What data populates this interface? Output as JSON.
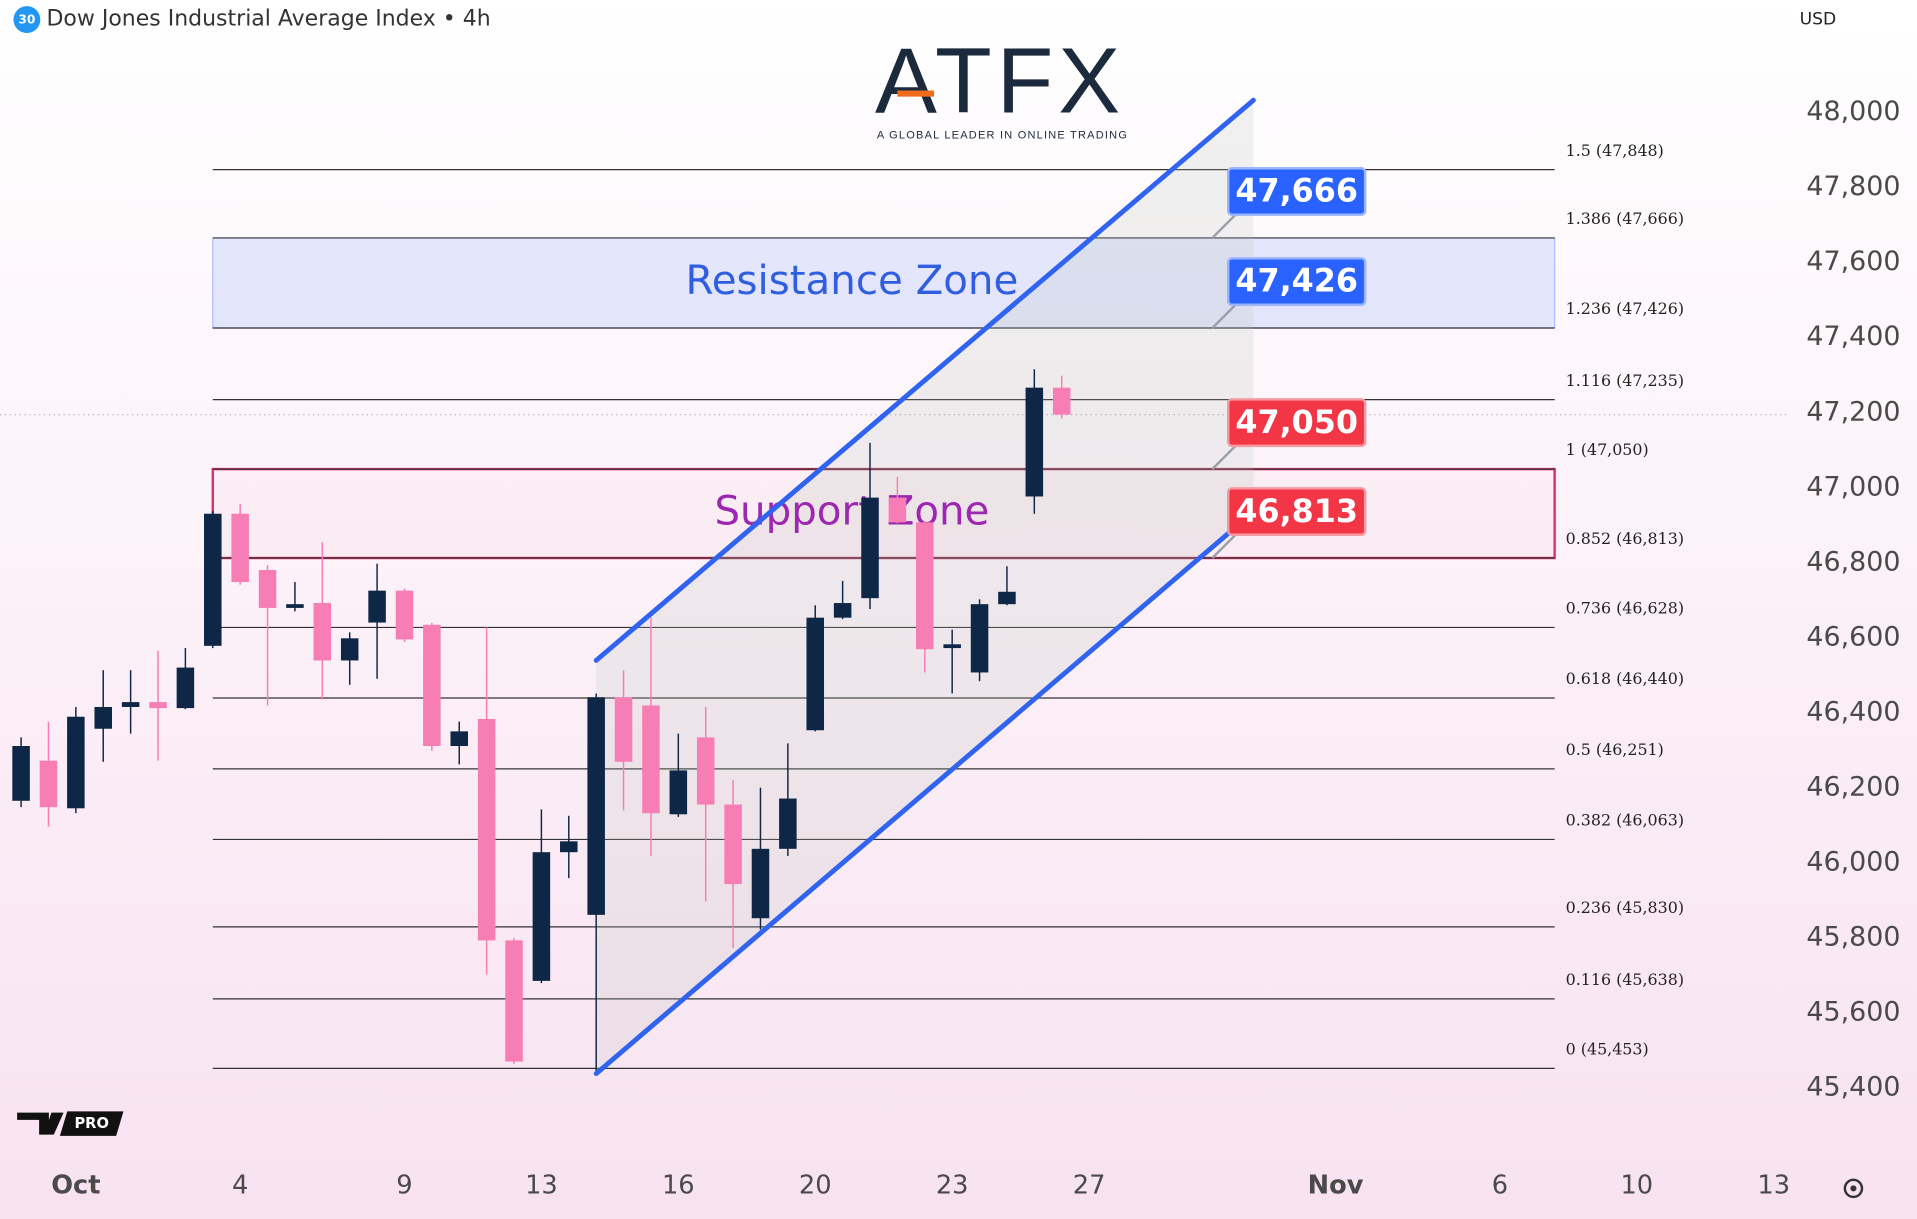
{
  "header": {
    "badge": "30",
    "title": "Dow Jones Industrial Average Index • 4h",
    "currency": "USD"
  },
  "logo": {
    "name": "ATFX",
    "tagline": "A GLOBAL LEADER IN ONLINE TRADING"
  },
  "watermark": "PRO",
  "chart_data": {
    "type": "candlestick",
    "bull_color": "#0f2747",
    "bear_color": "#f77db5",
    "grid": false,
    "x": [
      -2,
      -1,
      0,
      1,
      2,
      3,
      4,
      5,
      6,
      7,
      8,
      9,
      10,
      11,
      12,
      13,
      14,
      15,
      16,
      17,
      18,
      19,
      20,
      21,
      22,
      23,
      24,
      25,
      26,
      27,
      28,
      29,
      30,
      31,
      32,
      33,
      34,
      35,
      36
    ],
    "open": [
      46166,
      46273,
      46146,
      46358,
      46416,
      46429,
      46413,
      46579,
      46931,
      46781,
      46680,
      46693,
      46540,
      46641,
      46726,
      46635,
      46312,
      46384,
      45794,
      45686,
      46029,
      45862,
      46442,
      46420,
      46130,
      46335,
      46156,
      45853,
      46038,
      46354,
      46654,
      46706,
      46974,
      46908,
      46573,
      46508,
      46690,
      46977,
      47267
    ],
    "high": [
      46335,
      46377,
      46416,
      46514,
      46514,
      46566,
      46573,
      46938,
      46957,
      46794,
      46749,
      46856,
      46615,
      46798,
      46732,
      46640,
      46377,
      46628,
      45800,
      46143,
      46126,
      46452,
      46514,
      46654,
      46345,
      46416,
      46221,
      46201,
      46319,
      46687,
      46752,
      47120,
      47029,
      46910,
      46622,
      46703,
      46791,
      47316,
      47299
    ],
    "low": [
      46149,
      46097,
      46133,
      46270,
      46345,
      46273,
      46410,
      46573,
      46742,
      46420,
      46671,
      46436,
      46475,
      46491,
      46589,
      46299,
      46263,
      45703,
      45465,
      45680,
      45960,
      45442,
      46140,
      46019,
      46123,
      45898,
      45774,
      45823,
      46019,
      46351,
      46650,
      46677,
      46905,
      46508,
      46452,
      46485,
      46687,
      46931,
      47185
    ],
    "close": [
      46312,
      46149,
      46390,
      46416,
      46429,
      46413,
      46521,
      46931,
      46749,
      46680,
      46690,
      46540,
      46599,
      46726,
      46596,
      46312,
      46351,
      45794,
      45471,
      46029,
      46058,
      46442,
      46270,
      46133,
      46247,
      46156,
      45944,
      46038,
      46172,
      46654,
      46693,
      46974,
      46908,
      46570,
      46583,
      46690,
      46723,
      47267,
      47195
    ],
    "xlim": [
      -2.77,
      62.5
    ],
    "xticks": [
      {
        "value": 0,
        "label": "Oct"
      },
      {
        "value": 6,
        "label": "4"
      },
      {
        "value": 12,
        "label": "9"
      },
      {
        "value": 17,
        "label": "13"
      },
      {
        "value": 22,
        "label": "16"
      },
      {
        "value": 27,
        "label": "20"
      },
      {
        "value": 32,
        "label": "23"
      },
      {
        "value": 37,
        "label": "27"
      },
      {
        "value": 46,
        "label": "Nov"
      },
      {
        "value": 52,
        "label": "6"
      },
      {
        "value": 57,
        "label": "10"
      },
      {
        "value": 62,
        "label": "13"
      }
    ],
    "ylim": [
      45221,
      48300
    ],
    "yticks": [
      {
        "value": 45400,
        "label": "45,400"
      },
      {
        "value": 45600,
        "label": "45,600"
      },
      {
        "value": 45800,
        "label": "45,800"
      },
      {
        "value": 46000,
        "label": "46,000"
      },
      {
        "value": 46200,
        "label": "46,200"
      },
      {
        "value": 46400,
        "label": "46,400"
      },
      {
        "value": 46600,
        "label": "46,600"
      },
      {
        "value": 46800,
        "label": "46,800"
      },
      {
        "value": 47000,
        "label": "47,000"
      },
      {
        "value": 47200,
        "label": "47,200"
      },
      {
        "value": 47400,
        "label": "47,400"
      },
      {
        "value": 47600,
        "label": "47,600"
      },
      {
        "value": 47800,
        "label": "47,800"
      },
      {
        "value": 48000,
        "label": "48,000"
      }
    ],
    "level_span": [
      5,
      54
    ],
    "fib_levels": [
      {
        "price": 47848,
        "label": "1.5 (47,848)"
      },
      {
        "price": 47666,
        "label": "1.386 (47,666)"
      },
      {
        "price": 47426,
        "label": "1.236 (47,426)"
      },
      {
        "price": 47235,
        "label": "1.116 (47,235)"
      },
      {
        "price": 47050,
        "label": "1 (47,050)"
      },
      {
        "price": 46813,
        "label": "0.852 (46,813)"
      },
      {
        "price": 46628,
        "label": "0.736 (46,628)"
      },
      {
        "price": 46440,
        "label": "0.618 (46,440)"
      },
      {
        "price": 46251,
        "label": "0.5 (46,251)"
      },
      {
        "price": 46063,
        "label": "0.382 (46,063)"
      },
      {
        "price": 45830,
        "label": "0.236 (45,830)"
      },
      {
        "price": 45638,
        "label": "0.116 (45,638)"
      },
      {
        "price": 45453,
        "label": "0 (45,453)"
      }
    ],
    "zones": [
      {
        "label": "Resistance Zone",
        "top": 47666,
        "bottom": 47426,
        "color": "#2962ff",
        "text_color": "#2f5fe0"
      },
      {
        "label": "Support Zone",
        "top": 47050,
        "bottom": 46813,
        "color": "#e0306a",
        "text_color": "#9c27b0"
      }
    ],
    "channel": {
      "color": "#2f63f0",
      "upper": {
        "x": [
          19,
          43
        ],
        "y": [
          46540,
          48033
        ]
      },
      "lower": {
        "x": [
          19,
          42.3
        ],
        "y": [
          45439,
          46892
        ]
      }
    },
    "price_tags": [
      {
        "value": 47666,
        "label": "47,666",
        "color": "#2962ff"
      },
      {
        "value": 47426,
        "label": "47,426",
        "color": "#2962ff"
      },
      {
        "value": 47050,
        "label": "47,050",
        "color": "#f23645"
      },
      {
        "value": 46813,
        "label": "46,813",
        "color": "#f23645"
      }
    ],
    "tag_x": 41.5
  }
}
